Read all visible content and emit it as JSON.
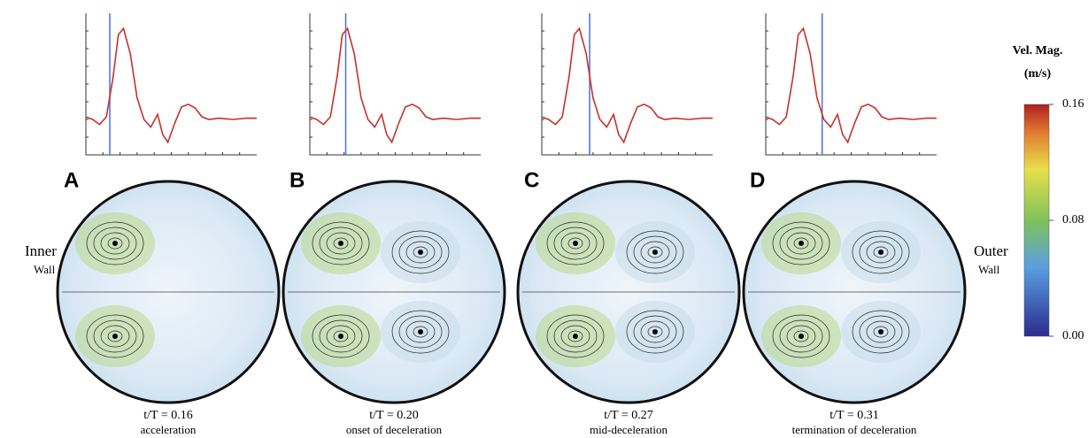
{
  "waveform": {
    "x": [
      0,
      0.04,
      0.08,
      0.12,
      0.16,
      0.19,
      0.22,
      0.26,
      0.3,
      0.34,
      0.38,
      0.42,
      0.45,
      0.48,
      0.52,
      0.56,
      0.6,
      0.64,
      0.68,
      0.72,
      0.78,
      0.86,
      0.94,
      1
    ],
    "values": [
      0.3,
      0.28,
      0.24,
      0.3,
      0.62,
      0.95,
      1.0,
      0.8,
      0.45,
      0.28,
      0.22,
      0.32,
      0.16,
      0.1,
      0.25,
      0.38,
      0.4,
      0.37,
      0.3,
      0.28,
      0.29,
      0.28,
      0.29,
      0.29
    ],
    "xlim": [
      0,
      1
    ],
    "ylim": [
      0,
      1.05
    ]
  },
  "panels": [
    {
      "letter": "A",
      "time_label": "t/T = 0.16",
      "phase": "acceleration",
      "cursor": 0.14
    },
    {
      "letter": "B",
      "time_label": "t/T = 0.20",
      "phase": "onset of deceleration",
      "cursor": 0.21
    },
    {
      "letter": "C",
      "time_label": "t/T = 0.27",
      "phase": "mid-deceleration",
      "cursor": 0.28
    },
    {
      "letter": "D",
      "time_label": "t/T = 0.31",
      "phase": "termination of deceleration",
      "cursor": 0.33
    }
  ],
  "left_label": {
    "line1": "Inner",
    "line2": "Wall"
  },
  "right_label": {
    "line1": "Outer",
    "line2": "Wall"
  },
  "colorbar": {
    "title1": "Vel. Mag.",
    "title2": "(m/s)",
    "lim": [
      0,
      0.16
    ],
    "ticks": [
      {
        "value": 0.16,
        "label": "0.16"
      },
      {
        "value": 0.08,
        "label": "0.08"
      },
      {
        "value": 0,
        "label": "0.00"
      }
    ]
  }
}
